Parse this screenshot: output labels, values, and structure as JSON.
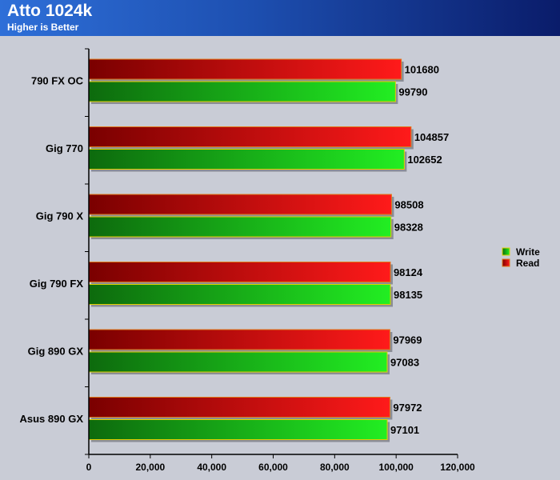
{
  "chart_data": {
    "type": "bar",
    "orientation": "horizontal",
    "title": "Atto 1024k",
    "subtitle": "Higher is Better",
    "categories": [
      "790 FX OC",
      "Gig 770",
      "Gig 790 X",
      "Gig 790 FX",
      "Gig 890 GX",
      "Asus 890 GX"
    ],
    "series": [
      {
        "name": "Read",
        "values": [
          101680,
          104857,
          98508,
          98124,
          97969,
          97972
        ],
        "color": "#ff1a1a"
      },
      {
        "name": "Write",
        "values": [
          99790,
          102652,
          98328,
          98135,
          97083,
          97101
        ],
        "color": "#22d622"
      }
    ],
    "xlim": [
      0,
      120000
    ],
    "xticks": [
      "0",
      "20,000",
      "40,000",
      "60,000",
      "80,000",
      "100,000",
      "120,000"
    ],
    "legend": [
      "Write",
      "Read"
    ],
    "legend_position": "right",
    "grid": false
  },
  "colors": {
    "background": "#c9ccd6",
    "header_start": "#2e6fd8",
    "header_end": "#0a1c6a",
    "read_dark": "#7a0000",
    "read_light": "#ff1a1a",
    "write_dark": "#0d6a0d",
    "write_light": "#22ee22"
  }
}
